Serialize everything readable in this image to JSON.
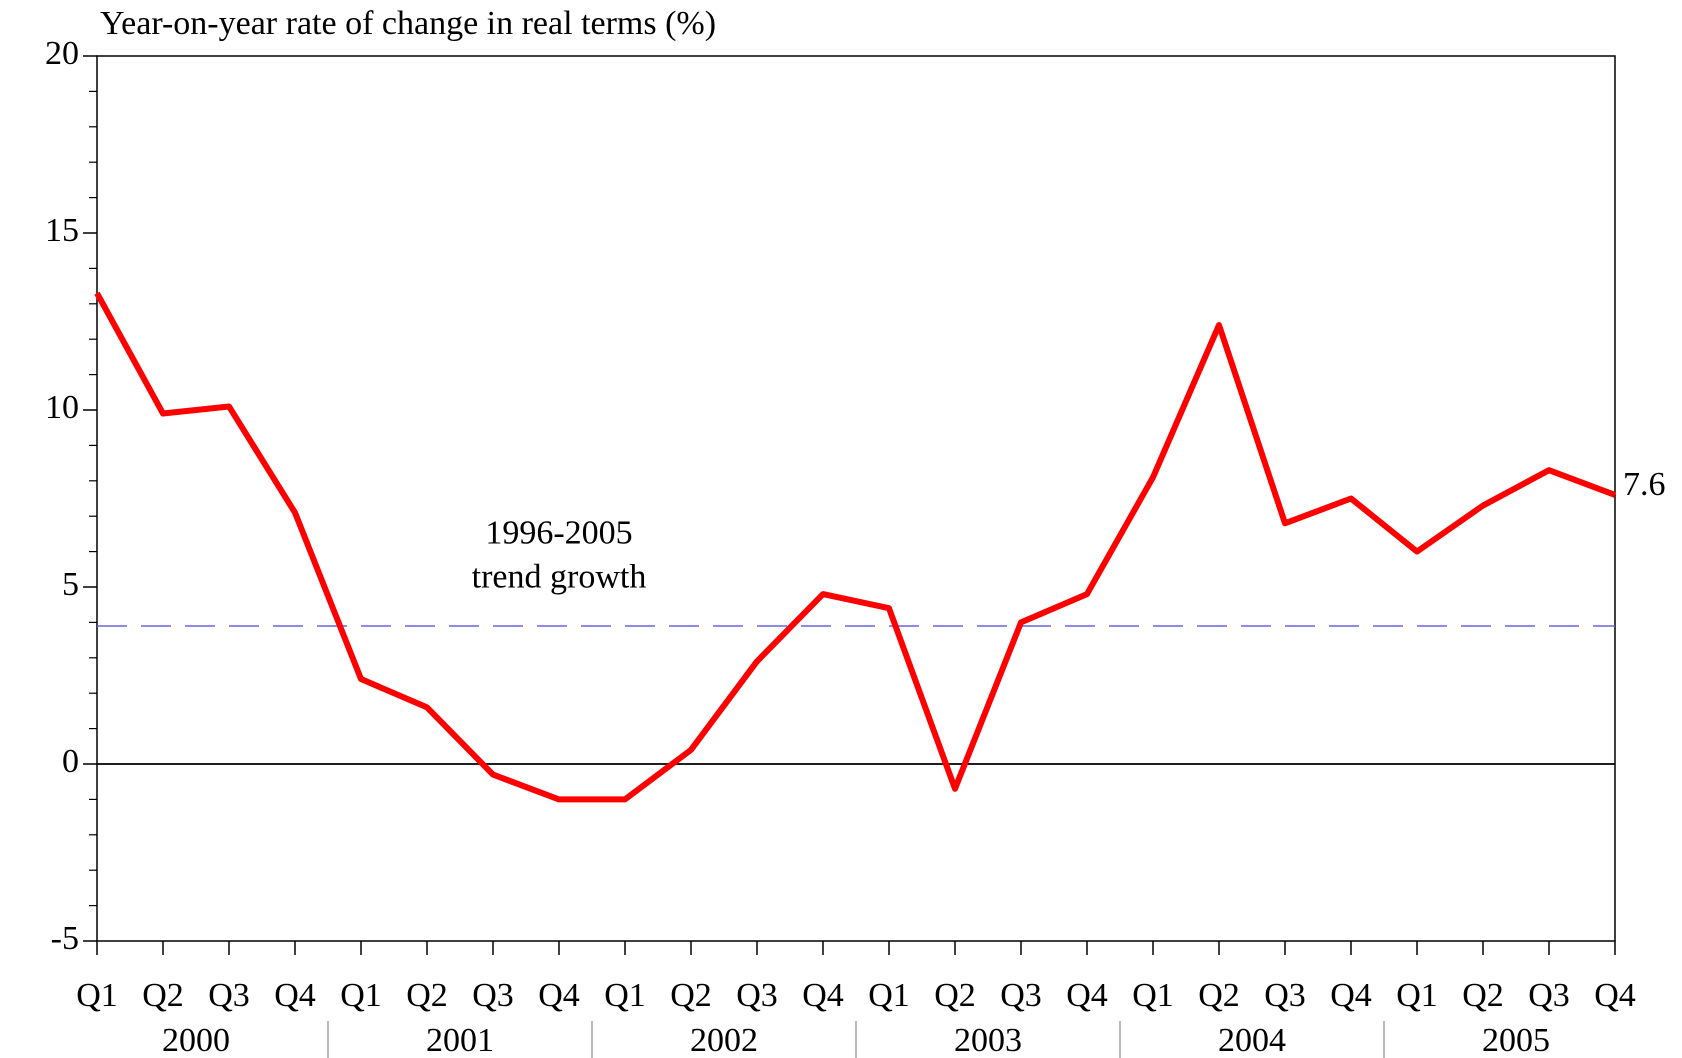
{
  "chart_data": {
    "type": "line",
    "title": "Year-on-year rate of change in real terms (%)",
    "categories": [
      "Q1",
      "Q2",
      "Q3",
      "Q4",
      "Q1",
      "Q2",
      "Q3",
      "Q4",
      "Q1",
      "Q2",
      "Q3",
      "Q4",
      "Q1",
      "Q2",
      "Q3",
      "Q4",
      "Q1",
      "Q2",
      "Q3",
      "Q4",
      "Q1",
      "Q2",
      "Q3",
      "Q4"
    ],
    "groups": [
      "2000",
      "2001",
      "2002",
      "2003",
      "2004",
      "2005"
    ],
    "series": [
      {
        "color": "#ff0000",
        "values": [
          13.3,
          9.9,
          10.1,
          7.1,
          2.4,
          1.6,
          -0.3,
          -1.0,
          -1.0,
          0.4,
          2.9,
          4.8,
          4.4,
          -0.7,
          4.0,
          4.8,
          8.1,
          12.4,
          6.8,
          7.5,
          6.0,
          7.3,
          8.3,
          7.6
        ]
      }
    ],
    "ylim": [
      -5,
      20
    ],
    "yticks": [
      -5,
      0,
      5,
      10,
      15,
      20
    ],
    "yminorticks": [
      -4,
      -3,
      -2,
      -1,
      1,
      2,
      3,
      4,
      6,
      7,
      8,
      9,
      11,
      12,
      13,
      14,
      16,
      17,
      18,
      19
    ],
    "reference_line": {
      "value": 3.9,
      "color": "#6666dd",
      "label": [
        "1996-2005",
        "trend growth"
      ]
    },
    "zero_line": true
  }
}
